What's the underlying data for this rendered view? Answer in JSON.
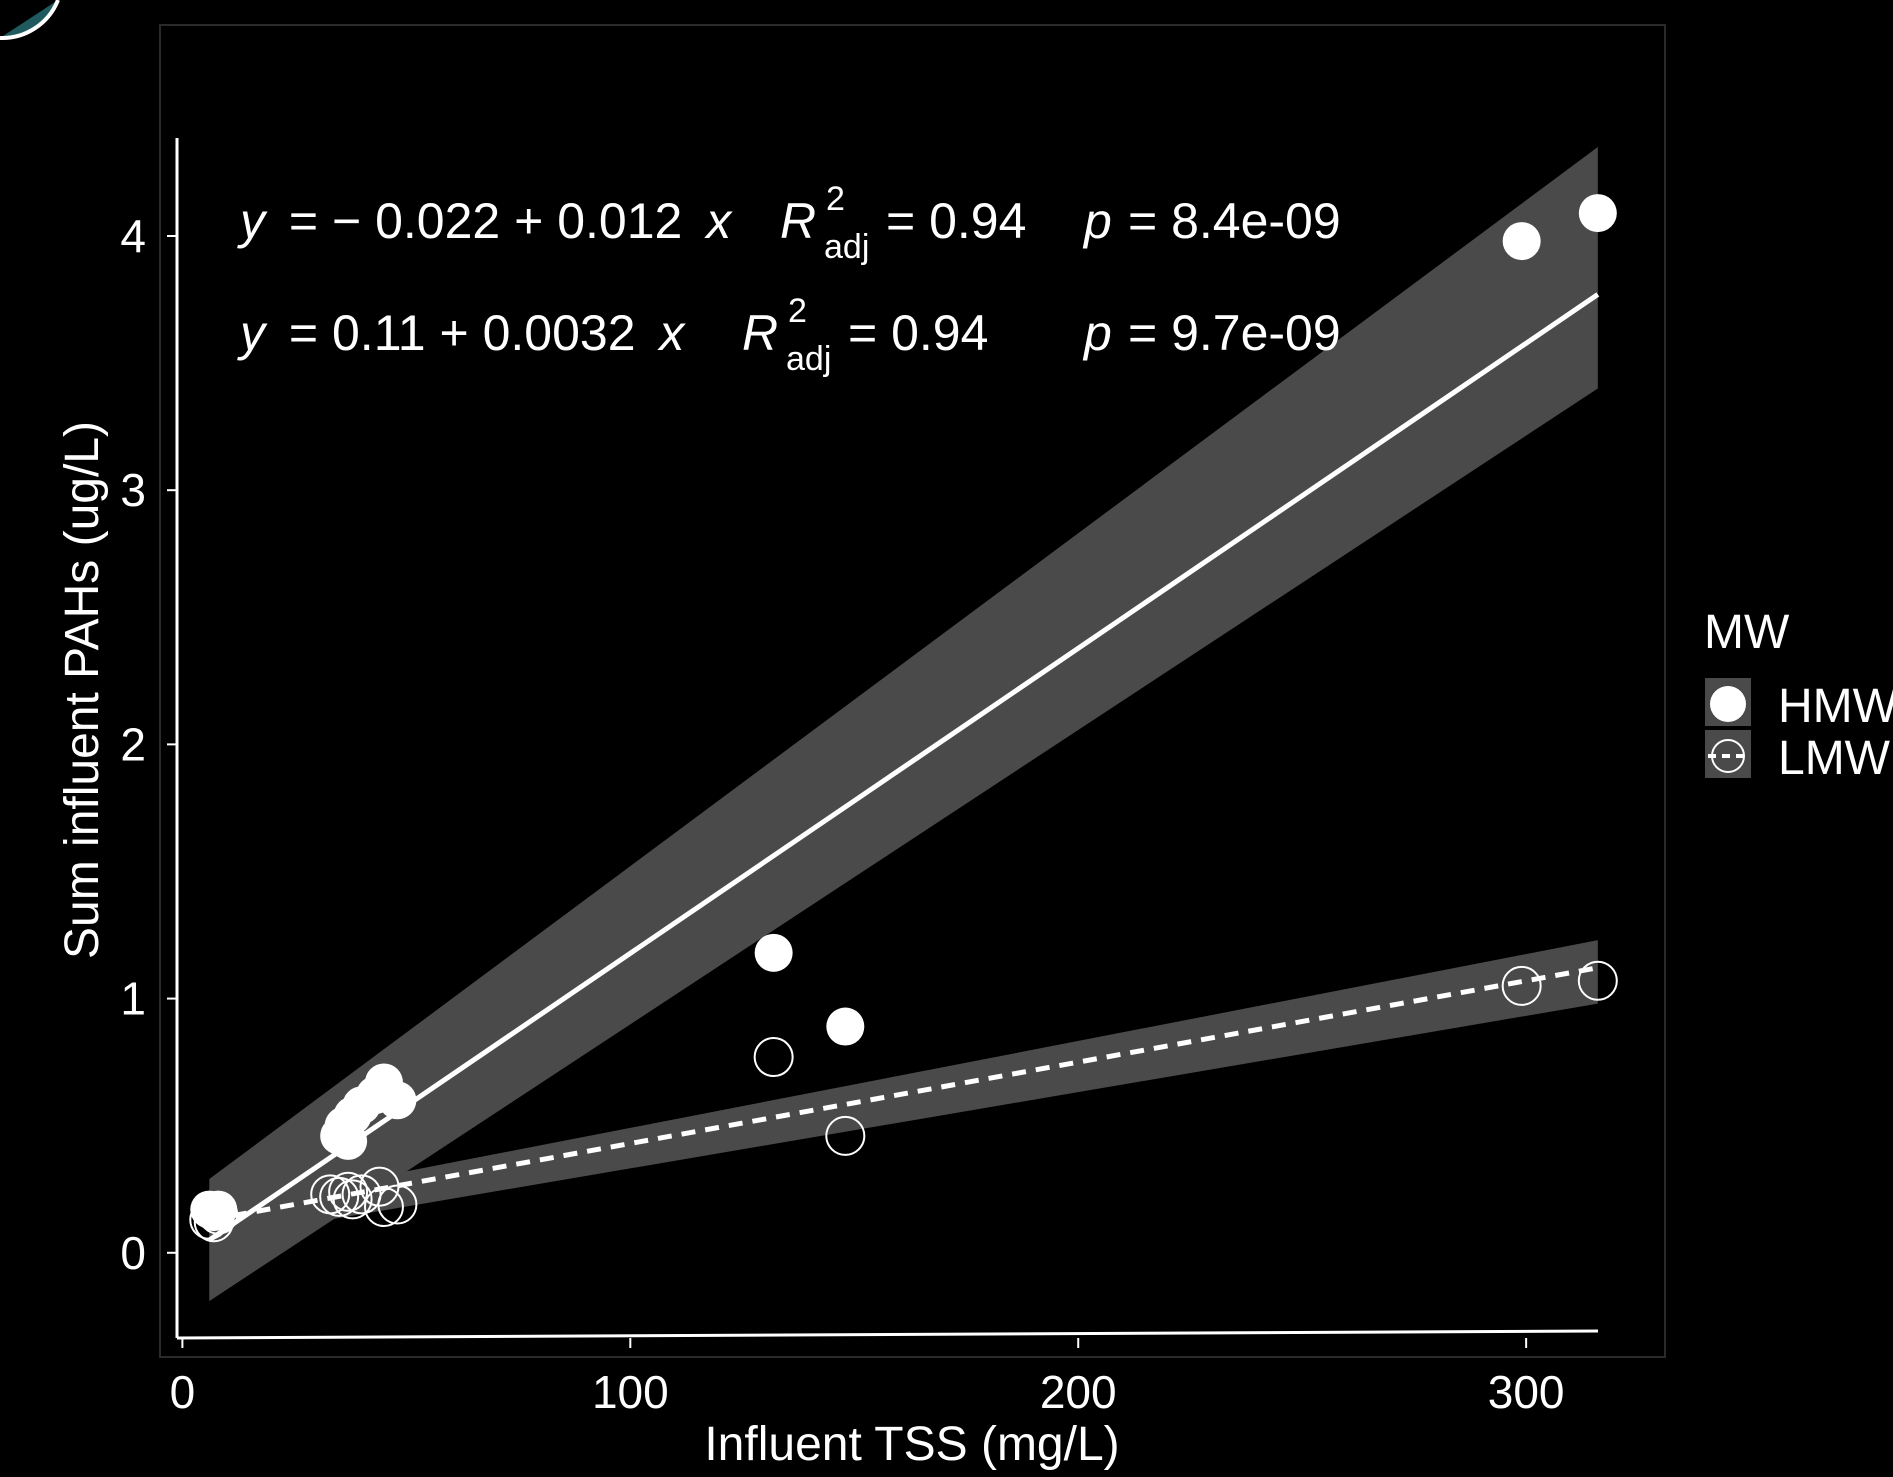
{
  "chart_data": {
    "type": "scatter",
    "xlabel": "Influent TSS (mg/L)",
    "ylabel": "Sum influent PAHs (ug/L)",
    "xlim": [
      -5,
      331
    ],
    "ylim": [
      -0.41,
      4.83
    ],
    "x_ticks": [
      "0",
      "100",
      "200",
      "300"
    ],
    "x_tick_values": [
      0,
      100,
      200,
      300
    ],
    "y_ticks": [
      "0",
      "1",
      "2",
      "3",
      "4"
    ],
    "y_tick_values": [
      0,
      1,
      2,
      3,
      4
    ],
    "grid": false,
    "legend_position": "right",
    "legend_title": "MW",
    "background": "#000000",
    "foreground": "#ffffff",
    "band_color": "#4a4a4a",
    "series": [
      {
        "name": "HMW",
        "marker": "filled-circle",
        "line_style": "solid",
        "x": [
          6,
          7,
          8,
          35,
          36,
          37,
          38,
          40,
          43,
          45,
          48,
          132,
          148,
          299,
          316
        ],
        "y": [
          0.17,
          0.16,
          0.17,
          0.46,
          0.5,
          0.44,
          0.54,
          0.58,
          0.62,
          0.67,
          0.6,
          1.18,
          0.89,
          3.98,
          4.09
        ],
        "fit": {
          "intercept": -0.022,
          "slope": 0.012,
          "x_range": [
            6,
            316
          ]
        },
        "ci_band": {
          "x": [
            6,
            316
          ],
          "lower": [
            -0.19,
            3.4
          ],
          "upper": [
            0.29,
            4.35
          ]
        }
      },
      {
        "name": "LMW",
        "marker": "open-circle",
        "line_style": "dashed",
        "x": [
          6,
          7,
          8,
          33,
          35,
          37,
          38,
          40,
          44,
          45,
          48,
          132,
          148,
          299,
          316
        ],
        "y": [
          0.13,
          0.12,
          0.15,
          0.23,
          0.22,
          0.24,
          0.21,
          0.23,
          0.26,
          0.18,
          0.19,
          0.77,
          0.46,
          1.05,
          1.07
        ],
        "fit": {
          "intercept": 0.11,
          "slope": 0.0032,
          "x_range": [
            6,
            316
          ]
        },
        "ci_band": {
          "x": [
            6,
            316
          ],
          "lower": [
            0.05,
            0.98
          ],
          "upper": [
            0.17,
            1.23
          ]
        }
      }
    ],
    "annotations": [
      {
        "series": "HMW",
        "equation": "= − 0.022 + 0.012",
        "r2": "= 0.94",
        "p": "= 8.4e-09"
      },
      {
        "series": "LMW",
        "equation": "= 0.11 + 0.0032",
        "r2": "= 0.94",
        "p": "= 9.7e-09"
      }
    ]
  },
  "symbols": {
    "y": "y",
    "x": "x",
    "R": "R",
    "sup": "2",
    "sub": "adj",
    "p": "p"
  }
}
